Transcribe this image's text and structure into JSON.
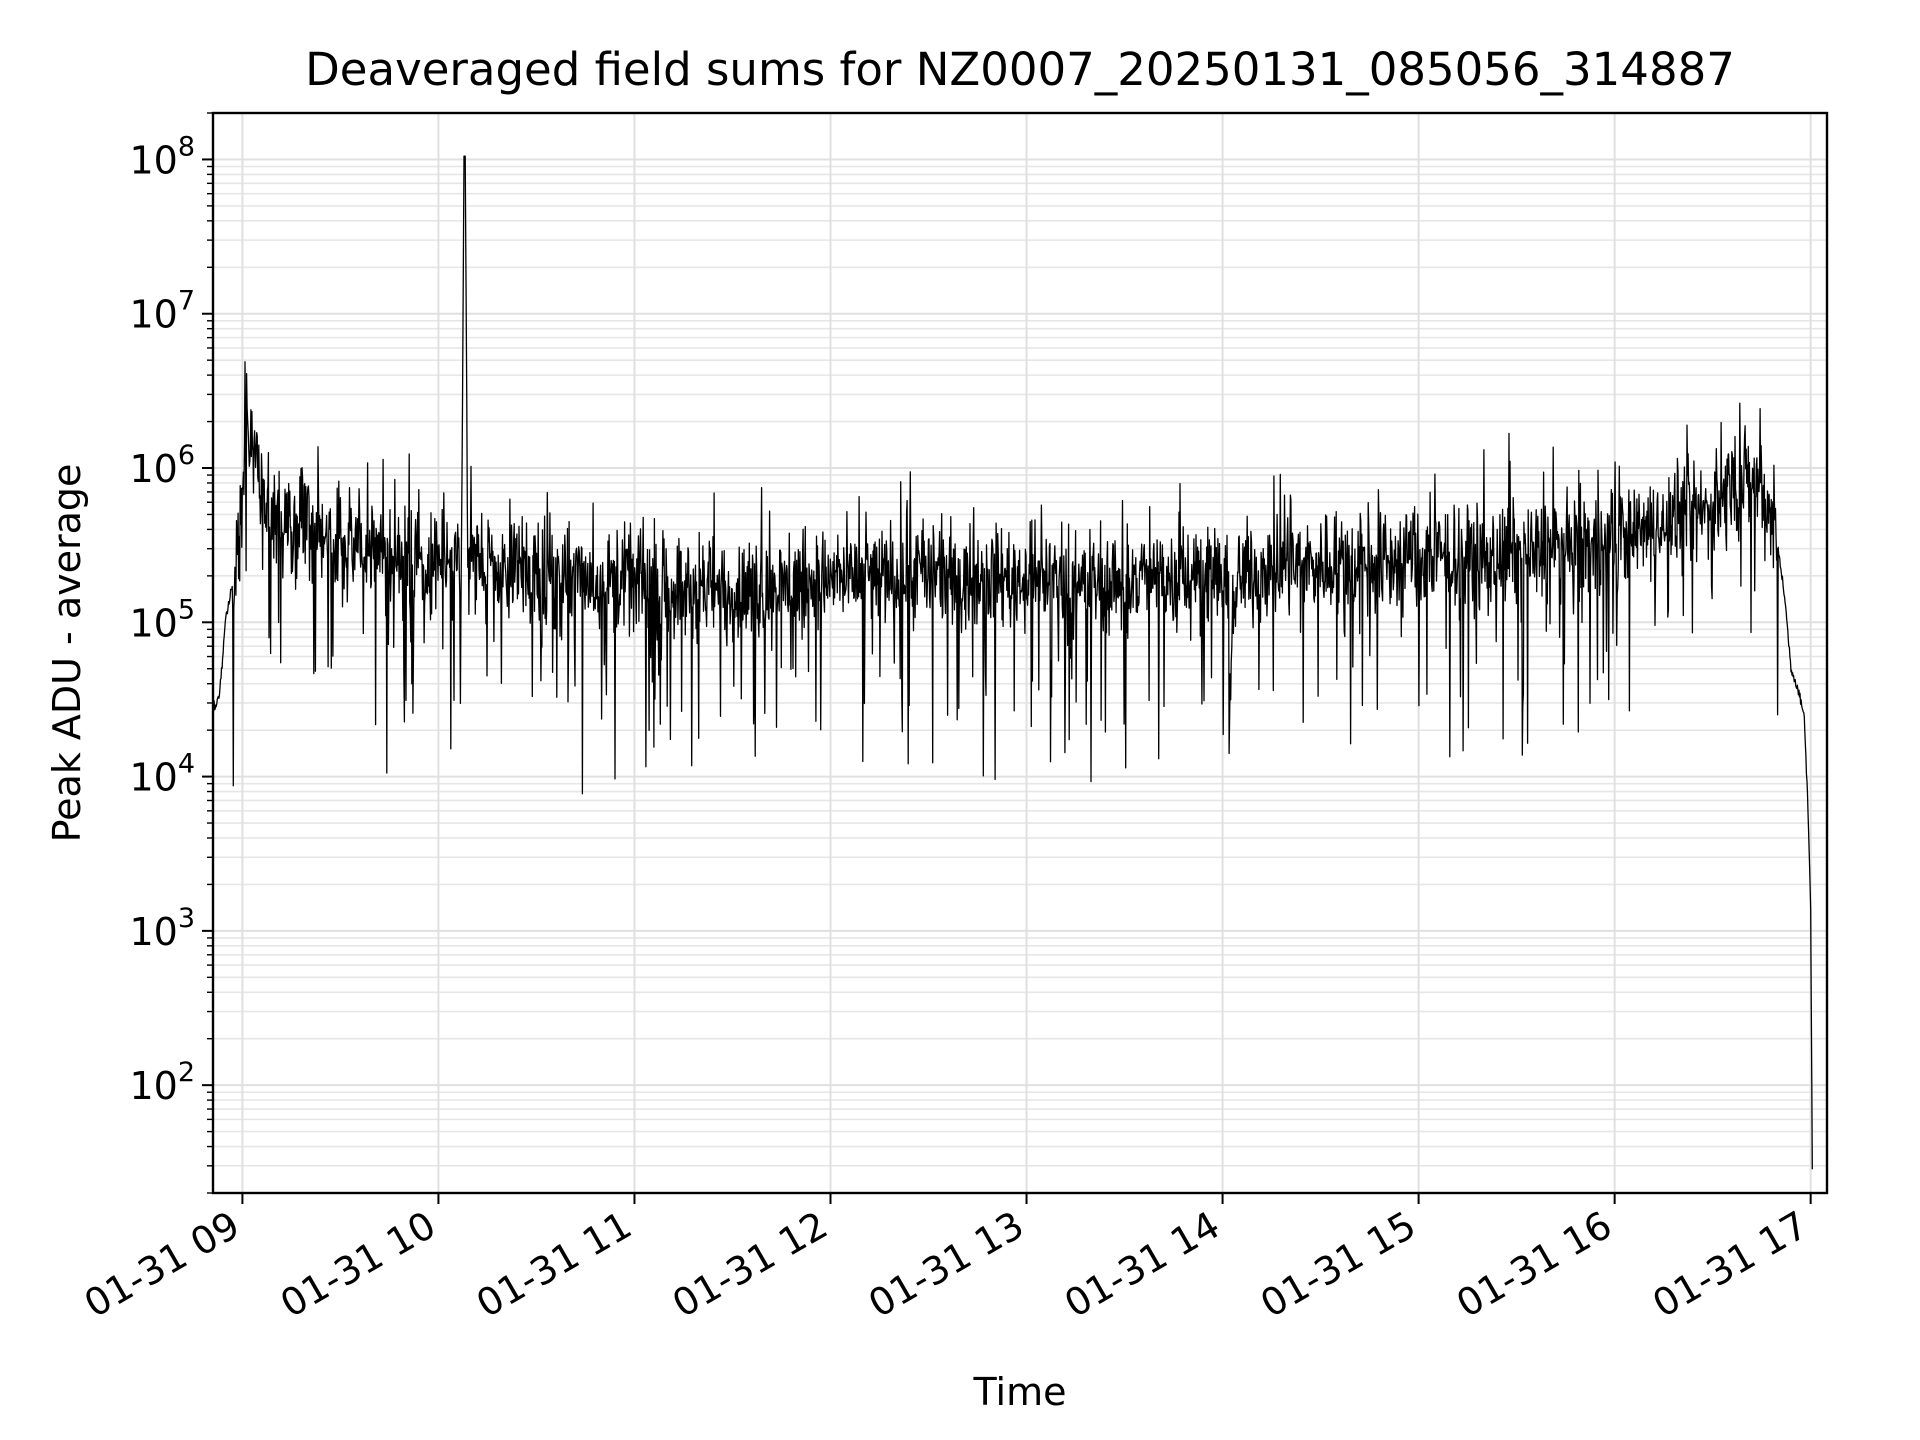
{
  "chart_data": {
    "type": "line",
    "title": "Deaveraged field sums for NZ0007_20250131_085056_314887",
    "xlabel": "Time",
    "ylabel": "Peak ADU - average",
    "x_scale": "time",
    "y_scale": "log",
    "xlim": [
      "2025-01-31 08:51",
      "2025-01-31 17:05"
    ],
    "ylim": [
      20,
      200000000
    ],
    "x_ticks": [
      "01-31 09",
      "01-31 10",
      "01-31 11",
      "01-31 12",
      "01-31 13",
      "01-31 14",
      "01-31 15",
      "01-31 16",
      "01-31 17"
    ],
    "y_ticks": [
      100,
      1000,
      10000,
      100000,
      1000000,
      10000000,
      100000000
    ],
    "y_tick_labels": [
      {
        "base": "10",
        "exp": "2"
      },
      {
        "base": "10",
        "exp": "3"
      },
      {
        "base": "10",
        "exp": "4"
      },
      {
        "base": "10",
        "exp": "5"
      },
      {
        "base": "10",
        "exp": "6"
      },
      {
        "base": "10",
        "exp": "7"
      },
      {
        "base": "10",
        "exp": "8"
      }
    ],
    "grid": true,
    "line_color": "#000000",
    "series": [
      {
        "x": [
          "08:51",
          "08:52",
          "08:53",
          "08:54",
          "08:55",
          "08:57",
          "08:59",
          "09:01",
          "09:03",
          "09:05",
          "09:07",
          "09:09",
          "09:11",
          "09:13",
          "09:16",
          "09:20",
          "09:25",
          "09:30",
          "09:35",
          "09:40",
          "09:45",
          "09:50",
          "09:55",
          "10:00",
          "10:05",
          "10:07",
          "10:08",
          "10:09",
          "10:10",
          "10:12",
          "10:15",
          "10:20",
          "10:30",
          "10:40",
          "10:50",
          "11:00",
          "11:10",
          "11:20",
          "11:30",
          "11:40",
          "11:50",
          "12:00",
          "12:10",
          "12:20",
          "12:30",
          "12:40",
          "12:50",
          "13:00",
          "13:10",
          "13:20",
          "13:30",
          "13:40",
          "13:50",
          "14:00",
          "14:03",
          "14:05",
          "14:10",
          "14:20",
          "14:30",
          "14:40",
          "14:50",
          "15:00",
          "15:10",
          "15:20",
          "15:30",
          "15:40",
          "15:50",
          "16:00",
          "16:10",
          "16:20",
          "16:30",
          "16:36",
          "16:40",
          "16:45",
          "16:48",
          "16:50",
          "16:52",
          "16:54",
          "16:56",
          "16:58",
          "16:59",
          "17:00",
          "17:00:30"
        ],
        "y": [
          30000,
          28000,
          35000,
          60000,
          110000,
          180000,
          300000,
          1200000,
          1500000,
          1000000,
          600000,
          500000,
          450000,
          420000,
          400000,
          380000,
          350000,
          330000,
          300000,
          280000,
          270000,
          260000,
          250000,
          250000,
          240000,
          260000,
          105000000,
          250000,
          240000,
          230000,
          230000,
          220000,
          210000,
          200000,
          190000,
          180000,
          170000,
          160000,
          150000,
          170000,
          180000,
          190000,
          200000,
          200000,
          210000,
          200000,
          200000,
          190000,
          190000,
          180000,
          180000,
          190000,
          200000,
          210000,
          90000,
          200000,
          220000,
          230000,
          240000,
          250000,
          250000,
          260000,
          270000,
          270000,
          280000,
          300000,
          320000,
          350000,
          400000,
          450000,
          550000,
          800000,
          850000,
          700000,
          500000,
          300000,
          150000,
          50000,
          38000,
          25000,
          8000,
          1500,
          30
        ]
      }
    ]
  }
}
